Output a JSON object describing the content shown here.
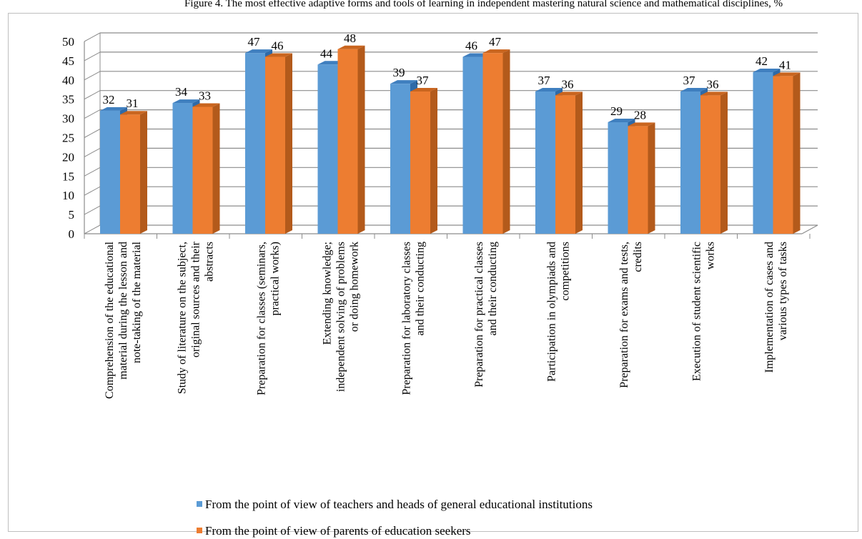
{
  "caption": "Figure 4. The most effective adaptive forms and tools of learning in independent mastering natural science and mathematical disciplines, %",
  "colors": {
    "series_front": [
      "#5b9bd5",
      "#ed7d31"
    ],
    "series_side": [
      "#2e6aa8",
      "#b35a1b"
    ],
    "series_top": [
      "#3f7fbf",
      "#c9651f"
    ],
    "wall": "#8c8c8c"
  },
  "chart_data": {
    "type": "bar",
    "title": "",
    "xlabel": "",
    "ylabel": "",
    "ylim": [
      0,
      50
    ],
    "ytick_step": 5,
    "grid": true,
    "legend_position": "bottom",
    "categories": [
      [
        "Comprehension of the educational",
        "material during the lesson and",
        "note-taking of the material"
      ],
      [
        "Study of literature on the subject,",
        "original sources and their",
        "abstracts"
      ],
      [
        "Preparation for classes (seminars,",
        "practical works)"
      ],
      [
        "Extending knowledge;",
        "independent solving of problems",
        "or doing homework"
      ],
      [
        "Preparation for laboratory classes",
        "and  their conducting"
      ],
      [
        "Preparation for practical classes",
        "and their conducting"
      ],
      [
        "Participation in olympiads and",
        "competitions"
      ],
      [
        "Preparation for exams and tests,",
        "credits"
      ],
      [
        "Execution of student scientific",
        "works"
      ],
      [
        "Implementation of cases and",
        "various types of tasks"
      ]
    ],
    "series": [
      {
        "name": "From the point of view of teachers and heads of general educational institutions",
        "values": [
          32,
          34,
          47,
          44,
          39,
          46,
          37,
          29,
          37,
          42
        ]
      },
      {
        "name": "From the point of view of parents of education seekers",
        "values": [
          31,
          33,
          46,
          48,
          37,
          47,
          36,
          28,
          36,
          41
        ]
      }
    ]
  }
}
